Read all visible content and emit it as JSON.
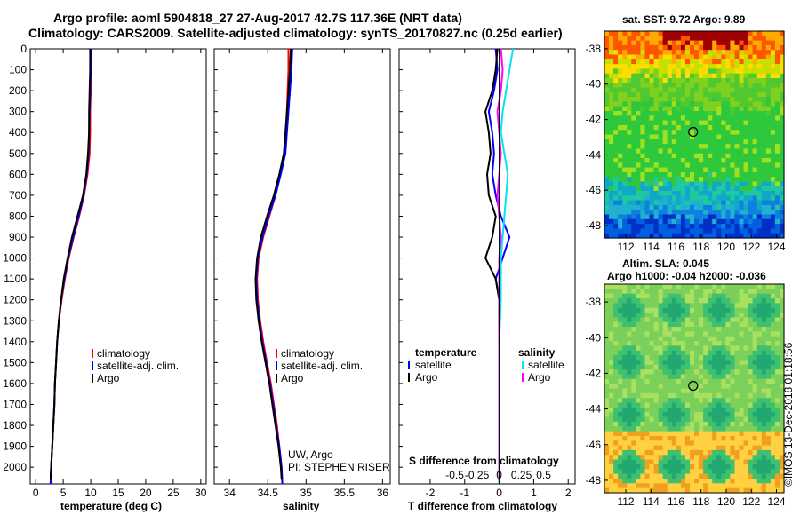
{
  "header": {
    "title_line1": "Argo profile: aoml 5904818_27 27-Aug-2017 42.7S 117.36E (NRT data)",
    "title_line2": "Climatology: CARS2009. Satellite-adjusted climatology: synTS_20170827.nc (0.25d earlier)"
  },
  "colors": {
    "climatology": "#ff0000",
    "satellite": "#0000ff",
    "argo": "#000000",
    "sal_satellite": "#00e5ee",
    "sal_argo": "#ff00ff"
  },
  "chart_data": [
    {
      "id": "temperature",
      "type": "line",
      "xlabel": "temperature (deg C)",
      "ylabel": "",
      "xlim": [
        -1,
        31
      ],
      "ylim": [
        2080,
        0
      ],
      "x_ticks": [
        0,
        5,
        10,
        15,
        20,
        25,
        30
      ],
      "y_ticks": [
        0,
        100,
        200,
        300,
        400,
        500,
        600,
        700,
        800,
        900,
        1000,
        1100,
        1200,
        1300,
        1400,
        1500,
        1600,
        1700,
        1800,
        1900,
        2000
      ],
      "legend": [
        "climatology",
        "satellite-adj. clim.",
        "Argo"
      ],
      "series": [
        {
          "name": "climatology",
          "color": "#ff0000",
          "points": [
            [
              10.0,
              0
            ],
            [
              10.0,
              100
            ],
            [
              10.0,
              200
            ],
            [
              9.9,
              300
            ],
            [
              9.9,
              400
            ],
            [
              9.8,
              500
            ],
            [
              9.4,
              600
            ],
            [
              8.8,
              700
            ],
            [
              7.9,
              800
            ],
            [
              6.9,
              900
            ],
            [
              6.0,
              1000
            ],
            [
              5.3,
              1100
            ],
            [
              4.7,
              1200
            ],
            [
              4.2,
              1300
            ],
            [
              3.9,
              1400
            ],
            [
              3.7,
              1500
            ],
            [
              3.5,
              1600
            ],
            [
              3.4,
              1700
            ],
            [
              3.2,
              1800
            ],
            [
              3.0,
              1900
            ],
            [
              2.8,
              2000
            ],
            [
              2.7,
              2080
            ]
          ]
        },
        {
          "name": "satellite-adj. clim.",
          "color": "#0000ff",
          "points": [
            [
              10.0,
              0
            ],
            [
              10.0,
              100
            ],
            [
              9.9,
              200
            ],
            [
              9.8,
              300
            ],
            [
              9.7,
              400
            ],
            [
              9.6,
              500
            ],
            [
              9.3,
              600
            ],
            [
              8.7,
              700
            ],
            [
              7.8,
              800
            ],
            [
              6.8,
              900
            ],
            [
              5.9,
              1000
            ],
            [
              5.2,
              1100
            ],
            [
              4.6,
              1200
            ],
            [
              4.2,
              1300
            ],
            [
              3.9,
              1400
            ],
            [
              3.7,
              1500
            ],
            [
              3.5,
              1600
            ],
            [
              3.4,
              1700
            ],
            [
              3.2,
              1800
            ],
            [
              3.0,
              1900
            ],
            [
              2.8,
              2000
            ],
            [
              2.7,
              2080
            ]
          ]
        },
        {
          "name": "Argo",
          "color": "#000000",
          "points": [
            [
              9.9,
              0
            ],
            [
              9.9,
              100
            ],
            [
              9.8,
              200
            ],
            [
              9.7,
              300
            ],
            [
              9.7,
              400
            ],
            [
              9.5,
              500
            ],
            [
              9.2,
              600
            ],
            [
              8.6,
              700
            ],
            [
              7.6,
              800
            ],
            [
              6.6,
              900
            ],
            [
              5.8,
              1000
            ],
            [
              5.1,
              1100
            ],
            [
              4.6,
              1200
            ],
            [
              4.2,
              1300
            ],
            [
              3.9,
              1400
            ],
            [
              3.7,
              1500
            ],
            [
              3.5,
              1600
            ],
            [
              3.4,
              1700
            ],
            [
              3.2,
              1800
            ],
            [
              3.0,
              1900
            ],
            [
              2.8,
              2000
            ],
            [
              2.7,
              2060
            ]
          ]
        }
      ]
    },
    {
      "id": "salinity",
      "type": "line",
      "xlabel": "salinity",
      "xlim": [
        33.8,
        36.1
      ],
      "ylim": [
        2080,
        0
      ],
      "x_ticks": [
        34,
        34.5,
        35,
        35.5,
        36
      ],
      "legend": [
        "climatology",
        "satellite-adj. clim.",
        "Argo"
      ],
      "annotation": [
        "UW, Argo",
        "PI: STEPHEN RISER"
      ],
      "series": [
        {
          "name": "climatology",
          "color": "#ff0000",
          "points": [
            [
              34.77,
              0
            ],
            [
              34.77,
              100
            ],
            [
              34.76,
              200
            ],
            [
              34.75,
              300
            ],
            [
              34.74,
              400
            ],
            [
              34.72,
              500
            ],
            [
              34.66,
              600
            ],
            [
              34.6,
              700
            ],
            [
              34.52,
              800
            ],
            [
              34.44,
              900
            ],
            [
              34.38,
              1000
            ],
            [
              34.36,
              1100
            ],
            [
              34.37,
              1200
            ],
            [
              34.4,
              1300
            ],
            [
              34.44,
              1400
            ],
            [
              34.49,
              1500
            ],
            [
              34.54,
              1600
            ],
            [
              34.58,
              1700
            ],
            [
              34.62,
              1800
            ],
            [
              34.65,
              1900
            ],
            [
              34.68,
              2000
            ],
            [
              34.69,
              2080
            ]
          ]
        },
        {
          "name": "satellite-adj. clim.",
          "color": "#0000ff",
          "points": [
            [
              34.82,
              0
            ],
            [
              34.81,
              100
            ],
            [
              34.79,
              200
            ],
            [
              34.77,
              300
            ],
            [
              34.75,
              400
            ],
            [
              34.73,
              500
            ],
            [
              34.67,
              600
            ],
            [
              34.6,
              700
            ],
            [
              34.51,
              800
            ],
            [
              34.43,
              900
            ],
            [
              34.37,
              1000
            ],
            [
              34.35,
              1100
            ],
            [
              34.36,
              1200
            ],
            [
              34.39,
              1300
            ],
            [
              34.43,
              1400
            ],
            [
              34.48,
              1500
            ],
            [
              34.53,
              1600
            ],
            [
              34.57,
              1700
            ],
            [
              34.61,
              1800
            ],
            [
              34.65,
              1900
            ],
            [
              34.68,
              2000
            ],
            [
              34.69,
              2080
            ]
          ]
        },
        {
          "name": "Argo",
          "color": "#000000",
          "points": [
            [
              34.8,
              0
            ],
            [
              34.79,
              100
            ],
            [
              34.77,
              200
            ],
            [
              34.75,
              300
            ],
            [
              34.73,
              400
            ],
            [
              34.71,
              500
            ],
            [
              34.65,
              600
            ],
            [
              34.58,
              700
            ],
            [
              34.49,
              800
            ],
            [
              34.41,
              900
            ],
            [
              34.36,
              1000
            ],
            [
              34.34,
              1100
            ],
            [
              34.35,
              1200
            ],
            [
              34.38,
              1300
            ],
            [
              34.42,
              1400
            ],
            [
              34.47,
              1500
            ],
            [
              34.52,
              1600
            ],
            [
              34.56,
              1700
            ],
            [
              34.6,
              1800
            ],
            [
              34.64,
              1900
            ],
            [
              34.67,
              2000
            ],
            [
              34.68,
              2060
            ]
          ]
        }
      ]
    },
    {
      "id": "difference",
      "type": "line",
      "xlabel": "T difference from climatology",
      "xlim": [
        -2.9,
        2.2
      ],
      "ylim": [
        2080,
        0
      ],
      "x_ticks": [
        -2,
        -1,
        0,
        1,
        2
      ],
      "x_tick_labels": [
        "-2",
        "-1",
        "0",
        "1",
        "2"
      ],
      "s_axis_label": "S difference from climatology",
      "s_ticks": [
        -0.5,
        -0.25,
        0,
        0.25,
        0.5
      ],
      "s_tick_labels": [
        "-0.5",
        "-0.25",
        "0",
        "0.25",
        "0.5"
      ],
      "legend_left_title": "temperature",
      "legend_right_title": "salinity",
      "legend_left": [
        "satellite",
        "Argo"
      ],
      "legend_right": [
        "satellite",
        "Argo"
      ],
      "series": [
        {
          "name": "T satellite",
          "color": "#0000ff",
          "points": [
            [
              -0.1,
              0
            ],
            [
              -0.05,
              100
            ],
            [
              -0.15,
              200
            ],
            [
              -0.3,
              300
            ],
            [
              -0.2,
              400
            ],
            [
              -0.15,
              500
            ],
            [
              -0.2,
              600
            ],
            [
              -0.1,
              700
            ],
            [
              0.05,
              800
            ],
            [
              0.3,
              900
            ],
            [
              0.1,
              1000
            ],
            [
              -0.1,
              1100
            ],
            [
              0,
              1200
            ],
            [
              0,
              1400
            ],
            [
              0,
              1600
            ],
            [
              0,
              1800
            ],
            [
              0,
              2000
            ],
            [
              0,
              2080
            ]
          ]
        },
        {
          "name": "T Argo",
          "color": "#000000",
          "points": [
            [
              -0.05,
              0
            ],
            [
              -0.1,
              100
            ],
            [
              -0.2,
              200
            ],
            [
              -0.4,
              300
            ],
            [
              -0.3,
              400
            ],
            [
              -0.25,
              500
            ],
            [
              -0.35,
              600
            ],
            [
              -0.3,
              700
            ],
            [
              -0.1,
              800
            ],
            [
              -0.2,
              900
            ],
            [
              -0.4,
              1000
            ],
            [
              -0.1,
              1100
            ],
            [
              0,
              1200
            ],
            [
              0,
              1400
            ],
            [
              0,
              1600
            ],
            [
              0,
              1800
            ],
            [
              0,
              2000
            ],
            [
              0,
              2060
            ]
          ]
        },
        {
          "name": "S satellite",
          "color": "#00e5ee",
          "points": [
            [
              0.4,
              0
            ],
            [
              0.3,
              100
            ],
            [
              0.2,
              200
            ],
            [
              0.1,
              300
            ],
            [
              0.05,
              400
            ],
            [
              0.15,
              500
            ],
            [
              0.25,
              600
            ],
            [
              0.2,
              700
            ],
            [
              0.15,
              800
            ],
            [
              0.1,
              900
            ],
            [
              0.05,
              1000
            ],
            [
              0.05,
              1200
            ],
            [
              0,
              1400
            ],
            [
              0,
              1600
            ],
            [
              0,
              1800
            ],
            [
              0,
              2000
            ],
            [
              0,
              2080
            ]
          ]
        },
        {
          "name": "S Argo",
          "color": "#ff00ff",
          "points": [
            [
              0.05,
              0
            ],
            [
              0.1,
              100
            ],
            [
              0.05,
              200
            ],
            [
              -0.05,
              300
            ],
            [
              0.0,
              400
            ],
            [
              0.05,
              500
            ],
            [
              0.0,
              600
            ],
            [
              -0.05,
              700
            ],
            [
              0.0,
              800
            ],
            [
              0.05,
              900
            ],
            [
              0.0,
              1000
            ],
            [
              0.0,
              1200
            ],
            [
              0,
              1400
            ],
            [
              0,
              1600
            ],
            [
              0,
              1800
            ],
            [
              0,
              2000
            ],
            [
              0,
              2060
            ]
          ]
        }
      ]
    },
    {
      "id": "sst-map",
      "type": "heatmap",
      "title": "sat. SST: 9.72 Argo: 9.89",
      "x_ticks": [
        112,
        114,
        116,
        118,
        120,
        122,
        124
      ],
      "y_ticks": [
        -38,
        -40,
        -42,
        -44,
        -46,
        -48
      ],
      "xlim": [
        110.3,
        124.6
      ],
      "ylim": [
        -48.7,
        -37.0
      ],
      "marker": [
        117.36,
        -42.7
      ]
    },
    {
      "id": "sla-map",
      "type": "heatmap",
      "title_line1": "Altim. SLA: 0.045",
      "title_line2": "Argo h1000: -0.04 h2000: -0.036",
      "x_ticks": [
        112,
        114,
        116,
        118,
        120,
        122,
        124
      ],
      "y_ticks": [
        -38,
        -40,
        -42,
        -44,
        -46,
        -48
      ],
      "xlim": [
        110.3,
        124.6
      ],
      "ylim": [
        -48.7,
        -37.0
      ],
      "marker": [
        117.36,
        -42.7
      ]
    }
  ],
  "credit": "©IMOS 13-Dec-2018 01:18:56"
}
